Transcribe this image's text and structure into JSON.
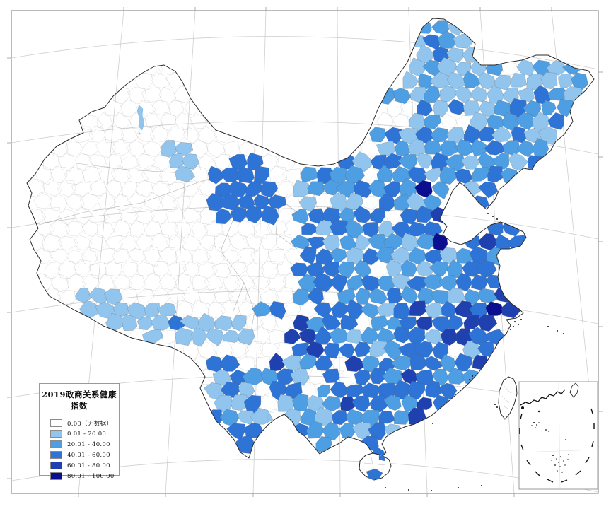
{
  "legend": {
    "title": "2019政商关系健康指数",
    "classes": [
      {
        "label": "0.00（无数据）",
        "range": [
          0,
          0
        ],
        "color": "#FFFFFF"
      },
      {
        "label": "0.01 - 20.00",
        "range": [
          0.01,
          20
        ],
        "color": "#92C5EE"
      },
      {
        "label": "20.01 - 40.00",
        "range": [
          20.01,
          40
        ],
        "color": "#4D9EE3"
      },
      {
        "label": "40.01 - 60.00",
        "range": [
          40.01,
          60
        ],
        "color": "#2E73D6"
      },
      {
        "label": "60.01 - 80.00",
        "range": [
          60.01,
          80
        ],
        "color": "#1F41B0"
      },
      {
        "label": "80.01 - 100.00",
        "range": [
          80.01,
          100
        ],
        "color": "#0A0E8F"
      }
    ]
  },
  "map_data": {
    "type": "choropleth",
    "title": "2019政商关系健康指数",
    "value_ranges": [
      "0.00 (no data)",
      "0.01-20.00",
      "20.01-40.00",
      "40.01-60.00",
      "60.01-80.00",
      "80.01-100.00"
    ]
  },
  "colors": {
    "frame": "#8c8c8c",
    "graticule": "#cfcfcf",
    "outline": "#2b2b2b",
    "boundary": "#b0b0b0",
    "cell_border": "#6e6e6e",
    "sea": "#FFFFFF",
    "ink": "#111111"
  }
}
